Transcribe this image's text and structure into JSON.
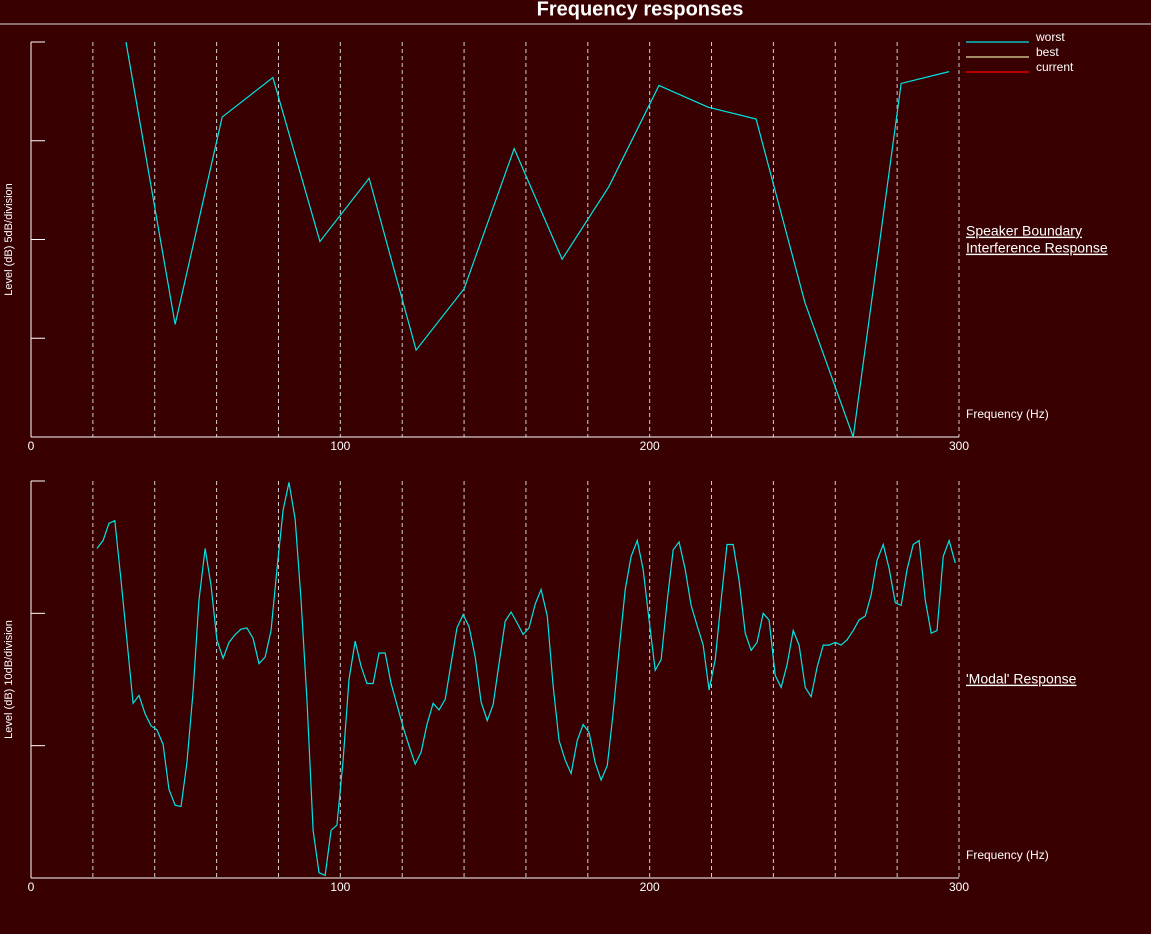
{
  "title": "Frequency responses",
  "chart_data": [
    {
      "type": "line",
      "ylabel": "Level (dB) 5dB/division",
      "xlabel": "Frequency (Hz)",
      "side_label": [
        "Speaker Boundary",
        "Interference Response"
      ],
      "xlim": [
        0,
        300
      ],
      "xticks": [
        0,
        100,
        200,
        300
      ],
      "xgrid": [
        20,
        40,
        60,
        80,
        100,
        120,
        140,
        160,
        180,
        200,
        220,
        240,
        260,
        280,
        300
      ],
      "ylim": [
        0,
        20
      ],
      "yticks": [
        0,
        5,
        10,
        15,
        20
      ],
      "legend": "top-right",
      "x": [
        30.7,
        46.6,
        61.8,
        78.2,
        93.4,
        109.3,
        124.5,
        140,
        156.2,
        171.7,
        186.9,
        203,
        218.9,
        234.4,
        250.2,
        265.8,
        281.3,
        296.8
      ],
      "series": [
        {
          "name": "worst",
          "color": "#00e5e5",
          "values": [
            20,
            5.7,
            16.2,
            18.2,
            9.9,
            13.1,
            4.4,
            7.5,
            14.6,
            9.0,
            12.7,
            17.8,
            16.7,
            16.1,
            6.8,
            0,
            17.9,
            18.5
          ]
        },
        {
          "name": "best",
          "color": "#e8e0a0",
          "values": [
            null,
            null,
            null,
            null,
            null,
            null,
            null,
            null,
            null,
            null,
            null,
            null,
            null,
            null,
            null,
            null,
            null,
            null
          ]
        },
        {
          "name": "current",
          "color": "#ff0000",
          "values": [
            null,
            null,
            null,
            null,
            null,
            null,
            null,
            null,
            null,
            null,
            null,
            null,
            null,
            null,
            null,
            null,
            null,
            null
          ]
        }
      ]
    },
    {
      "type": "line",
      "ylabel": "Level (dB) 10dB/division",
      "xlabel": "Frequency (Hz)",
      "side_label": [
        "'Modal' Response"
      ],
      "xlim": [
        0,
        300
      ],
      "xticks": [
        0,
        100,
        200,
        300
      ],
      "xgrid": [
        20,
        40,
        60,
        80,
        100,
        120,
        140,
        160,
        180,
        200,
        220,
        240,
        260,
        280,
        300
      ],
      "ylim": [
        0,
        30
      ],
      "yticks": [
        0,
        10,
        20,
        30
      ],
      "x": [
        21.3,
        23.3,
        25.2,
        27.1,
        29.1,
        31.0,
        33.0,
        34.9,
        36.9,
        38.8,
        40.7,
        42.7,
        44.6,
        46.6,
        48.5,
        50.4,
        52.4,
        54.3,
        56.3,
        58.2,
        60.1,
        62.1,
        64.0,
        66.0,
        67.9,
        69.8,
        71.8,
        73.7,
        75.7,
        77.6,
        79.5,
        81.5,
        83.4,
        85.4,
        87.3,
        89.2,
        91.2,
        93.1,
        95.1,
        97.0,
        98.9,
        100.9,
        102.8,
        104.8,
        106.7,
        108.6,
        110.6,
        112.5,
        114.5,
        116.4,
        118.3,
        120.3,
        122.2,
        124.2,
        126.1,
        128.0,
        130.0,
        131.9,
        133.9,
        135.8,
        137.7,
        139.7,
        141.6,
        143.6,
        145.5,
        147.5,
        149.4,
        151.3,
        153.3,
        155.2,
        157.1,
        159.1,
        161.0,
        163.0,
        164.9,
        166.9,
        168.8,
        170.7,
        172.7,
        174.6,
        176.6,
        178.5,
        180.4,
        182.4,
        184.3,
        186.3,
        188.2,
        190.1,
        192.1,
        194.0,
        196.0,
        197.9,
        199.8,
        201.8,
        203.7,
        205.7,
        207.6,
        209.5,
        211.5,
        213.4,
        215.3,
        217.3,
        219.2,
        221.2,
        223.1,
        225.0,
        227.0,
        228.9,
        230.9,
        232.8,
        234.7,
        236.7,
        238.6,
        240.6,
        242.5,
        244.4,
        246.4,
        248.3,
        250.3,
        252.2,
        254.1,
        256.1,
        258.0,
        260.0,
        261.9,
        263.8,
        265.8,
        267.7,
        269.7,
        271.6,
        273.5,
        275.5,
        277.4,
        279.4,
        281.3,
        283.2,
        285.2,
        287.1,
        289.1,
        291.0,
        292.9,
        294.9,
        296.8,
        298.8
      ],
      "series": [
        {
          "name": "worst",
          "color": "#00e5e5",
          "values": [
            24.9,
            25.5,
            26.8,
            27.0,
            22.5,
            18.0,
            13.2,
            13.8,
            12.4,
            11.5,
            11.2,
            10.1,
            6.7,
            5.5,
            5.4,
            8.7,
            14.1,
            21.0,
            24.9,
            22.1,
            18.0,
            16.6,
            17.8,
            18.4,
            18.8,
            18.9,
            18.1,
            16.2,
            16.7,
            18.7,
            23.3,
            27.8,
            29.9,
            27.1,
            21.0,
            13.5,
            3.6,
            0.4,
            0.2,
            3.6,
            4.0,
            8.9,
            15.0,
            17.9,
            16.0,
            14.7,
            14.7,
            17.0,
            17.0,
            14.7,
            13.1,
            11.4,
            10.0,
            8.6,
            9.5,
            11.6,
            13.2,
            12.7,
            13.5,
            16.2,
            18.9,
            19.9,
            19.0,
            16.7,
            13.3,
            11.9,
            13.1,
            16.2,
            19.4,
            20.1,
            19.3,
            18.4,
            18.9,
            20.7,
            21.8,
            19.8,
            14.5,
            10.4,
            8.9,
            7.9,
            10.4,
            11.6,
            11.0,
            8.7,
            7.4,
            8.5,
            12.5,
            17.2,
            21.8,
            24.3,
            25.5,
            23.3,
            19.5,
            15.7,
            16.5,
            21.0,
            24.8,
            25.4,
            23.3,
            20.6,
            19.1,
            17.6,
            14.2,
            16.5,
            21.0,
            25.2,
            25.2,
            22.5,
            18.5,
            17.2,
            17.8,
            20.0,
            19.5,
            15.3,
            14.4,
            16.1,
            18.7,
            17.6,
            14.4,
            13.7,
            15.9,
            17.6,
            17.6,
            17.8,
            17.6,
            18.0,
            18.7,
            19.5,
            19.8,
            21.4,
            24.0,
            25.2,
            23.4,
            20.8,
            20.6,
            23.3,
            25.2,
            25.5,
            21.0,
            18.5,
            18.7,
            24.3,
            25.5,
            23.8
          ]
        }
      ]
    }
  ]
}
